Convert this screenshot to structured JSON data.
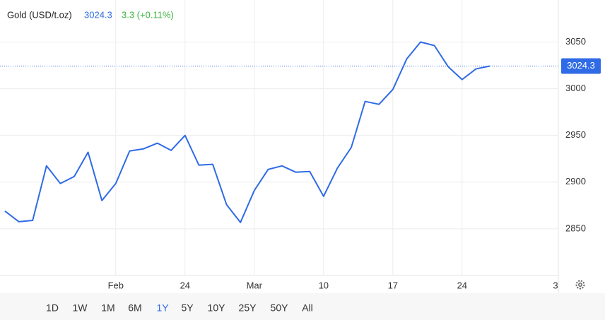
{
  "header": {
    "title": "Gold (USD/t.oz)",
    "price": "3024.3",
    "change": "3.3 (+0.11%)"
  },
  "chart_data": {
    "type": "line",
    "color": "#2f6be6",
    "categories": [
      null,
      null,
      null,
      null,
      null,
      null,
      null,
      null,
      "Feb",
      null,
      null,
      null,
      null,
      "24",
      null,
      null,
      null,
      null,
      "Mar",
      null,
      null,
      null,
      null,
      "10",
      null,
      null,
      null,
      null,
      "17",
      null,
      null,
      null,
      null,
      "24",
      null,
      null,
      null,
      null,
      null,
      null,
      "3"
    ],
    "values": [
      2869,
      2857.6,
      2859,
      2917.4,
      2898.5,
      2906,
      2932,
      2880.3,
      2898.5,
      2933.3,
      2935.6,
      2941.7,
      2934,
      2950,
      2918.2,
      2919,
      2875.8,
      2856.8,
      2891,
      2913.6,
      2917.4,
      2910.6,
      2911.4,
      2884.8,
      2915,
      2937.1,
      2986.4,
      2983.3,
      2999.2,
      3031.8,
      3050,
      3046.2,
      3023.5,
      3009.8,
      3021.2,
      3024.3,
      null,
      null,
      null,
      null,
      null
    ],
    "ylim": [
      2800,
      3095
    ],
    "yticks": [
      2850,
      2900,
      2950,
      3000,
      3050
    ],
    "grid": true
  },
  "range_buttons": [
    "1D",
    "1W",
    "1M",
    "6M",
    "1Y",
    "5Y",
    "10Y",
    "25Y",
    "50Y",
    "All"
  ],
  "selected_range": "1Y"
}
